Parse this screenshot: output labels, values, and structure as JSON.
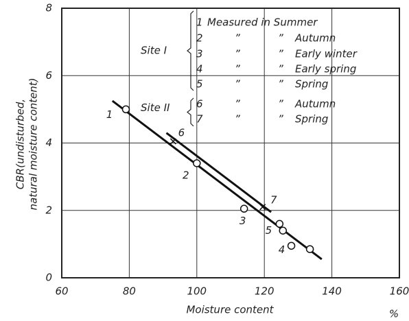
{
  "chart_data": {
    "type": "scatter",
    "xlabel": "Moisture content",
    "xunit": "%",
    "ylabel": [
      "CBR(undisturbed,",
      "natural moisture content)"
    ],
    "xlim": [
      60,
      160
    ],
    "ylim": [
      0,
      8
    ],
    "xticks": [
      60,
      80,
      100,
      120,
      140,
      160
    ],
    "yticks": [
      0,
      2,
      4,
      6,
      8
    ],
    "grid": true,
    "ditto": "”",
    "series": [
      {
        "name": "Site I",
        "color": "#111111",
        "marker": "circle",
        "x": [
          79,
          100,
          114,
          124.5,
          125.5,
          128,
          133.5
        ],
        "values": [
          5.0,
          3.4,
          2.05,
          1.6,
          1.4,
          0.95,
          0.85
        ],
        "point_labels": [
          "1",
          "2",
          "3",
          "5",
          null,
          "4",
          null
        ],
        "fit": {
          "x": [
            75,
            137
          ],
          "y": [
            5.25,
            0.55
          ]
        },
        "entries": [
          {
            "num": "1",
            "text": "Measured in Summer"
          },
          {
            "num": "2",
            "text": "Autumn"
          },
          {
            "num": "3",
            "text": "Early winter"
          },
          {
            "num": "4",
            "text": "Early spring"
          },
          {
            "num": "5",
            "text": "Spring"
          }
        ]
      },
      {
        "name": "Site II",
        "color": "#111111",
        "marker": "cross",
        "x": [
          93,
          119.5
        ],
        "values": [
          4.05,
          2.1
        ],
        "point_labels": [
          "6",
          "7"
        ],
        "fit": {
          "x": [
            91,
            122
          ],
          "y": [
            4.3,
            1.95
          ]
        },
        "entries": [
          {
            "num": "6",
            "text": "Autumn"
          },
          {
            "num": "7",
            "text": "Spring"
          }
        ]
      }
    ]
  }
}
